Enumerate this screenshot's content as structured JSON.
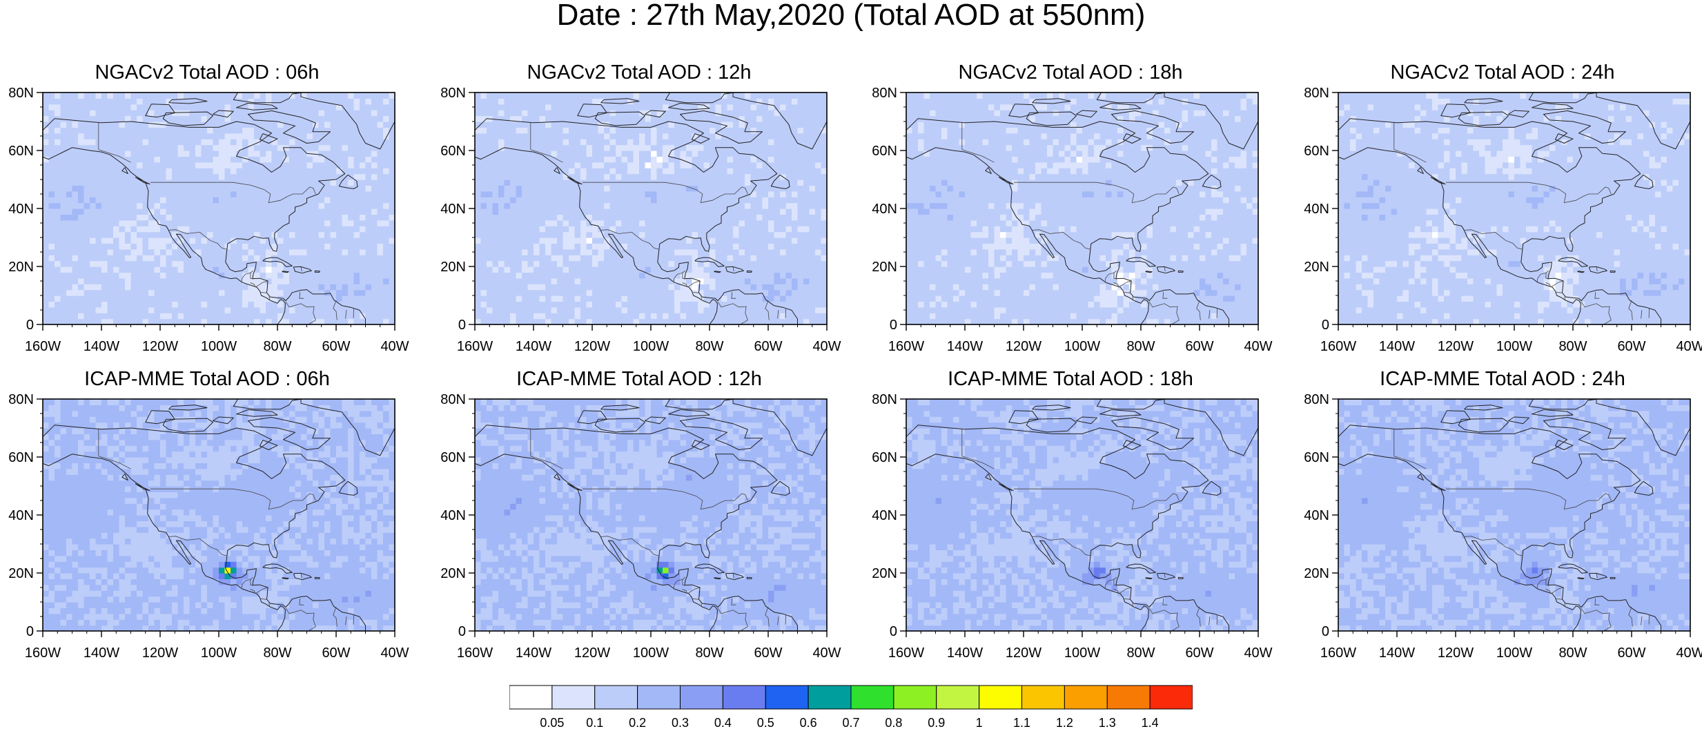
{
  "title": "Date : 27th May,2020 (Total AOD at 550nm)",
  "panels": [
    {
      "title": "NGACv2 Total AOD : 06h",
      "model": "NGACv2"
    },
    {
      "title": "NGACv2 Total AOD : 12h",
      "model": "NGACv2"
    },
    {
      "title": "NGACv2 Total AOD : 18h",
      "model": "NGACv2"
    },
    {
      "title": "NGACv2 Total AOD : 24h",
      "model": "NGACv2"
    },
    {
      "title": "ICAP-MME Total AOD : 06h",
      "model": "ICAP-MME"
    },
    {
      "title": "ICAP-MME Total AOD : 12h",
      "model": "ICAP-MME"
    },
    {
      "title": "ICAP-MME Total AOD : 18h",
      "model": "ICAP-MME"
    },
    {
      "title": "ICAP-MME Total AOD : 24h",
      "model": "ICAP-MME"
    }
  ],
  "axes": {
    "lat_ticks": [
      "0",
      "20N",
      "40N",
      "60N",
      "80N"
    ],
    "lon_ticks": [
      "160W",
      "140W",
      "120W",
      "100W",
      "80W",
      "60W",
      "40W"
    ]
  },
  "colorbar": {
    "levels": [
      "0.05",
      "0.1",
      "0.2",
      "0.3",
      "0.4",
      "0.5",
      "0.6",
      "0.7",
      "0.8",
      "0.9",
      "1",
      "1.1",
      "1.2",
      "1.3",
      "1.4"
    ],
    "colors": [
      "#ffffff",
      "#dbe4fc",
      "#bdcdfa",
      "#a3b8f7",
      "#8a9ef3",
      "#6a7df0",
      "#1f63f2",
      "#019e9e",
      "#2fe02c",
      "#8cf022",
      "#c2f542",
      "#fdfd00",
      "#fbc500",
      "#fb9f00",
      "#f77a04",
      "#fb2a08"
    ]
  }
}
